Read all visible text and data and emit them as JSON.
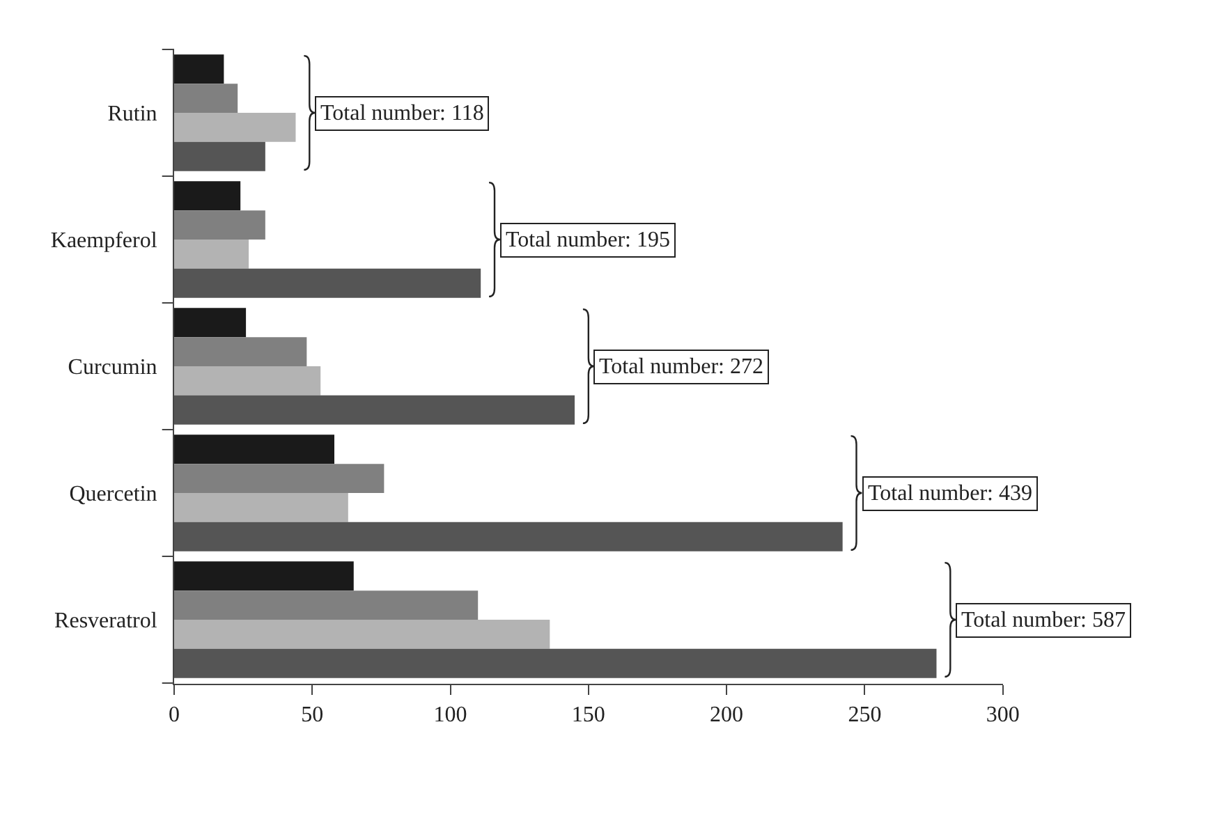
{
  "chart_data": {
    "type": "bar",
    "orientation": "horizontal",
    "categories": [
      "Rutin",
      "Kaempferol",
      "Curcumin",
      "Quercetin",
      "Resveratrol"
    ],
    "series": [
      {
        "color": "#1a1a1a",
        "values": [
          18,
          24,
          26,
          58,
          65
        ]
      },
      {
        "color": "#808080",
        "values": [
          23,
          33,
          48,
          76,
          110
        ]
      },
      {
        "color": "#b3b3b3",
        "values": [
          44,
          27,
          53,
          63,
          136
        ]
      },
      {
        "color": "#555555",
        "values": [
          33,
          111,
          145,
          242,
          276
        ]
      }
    ],
    "xlim": [
      0,
      300
    ],
    "xticks": [
      0,
      50,
      100,
      150,
      200,
      250,
      300
    ],
    "grid": false,
    "annotations": [
      "Total number: 118",
      "Total number: 195",
      "Total number: 272",
      "Total number: 439",
      "Total number: 587"
    ]
  }
}
